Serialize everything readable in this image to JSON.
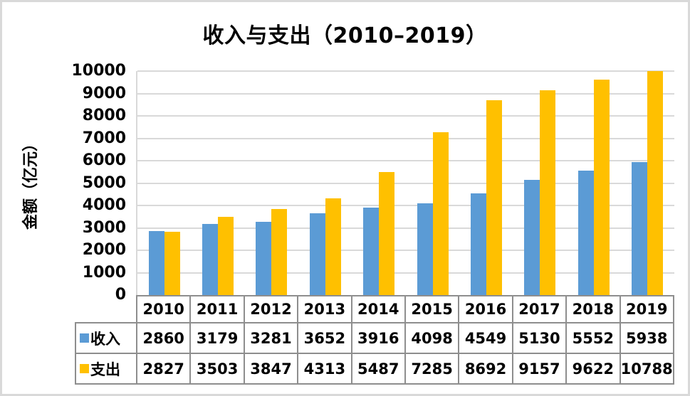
{
  "frame": {
    "background": "#FFFFFF",
    "border_color": "#D9D9D9"
  },
  "chart_data": {
    "type": "bar",
    "title": "收入与支出（2010–2019）",
    "ylabel": "金额（亿元）",
    "xlabel": "",
    "categories": [
      "2010",
      "2011",
      "2012",
      "2013",
      "2014",
      "2015",
      "2016",
      "2017",
      "2018",
      "2019"
    ],
    "series": [
      {
        "key": "income",
        "name": "收入",
        "color": "#5B9BD5",
        "values": [
          2860,
          3179,
          3281,
          3652,
          3916,
          4098,
          4549,
          5130,
          5552,
          5938
        ]
      },
      {
        "key": "expense",
        "name": "支出",
        "color": "#FFC000",
        "values": [
          2827,
          3503,
          3847,
          4313,
          5487,
          7285,
          8692,
          9157,
          9622,
          10788
        ]
      }
    ],
    "ylim": [
      0,
      10000
    ],
    "ytick_step": 1000,
    "ytick_labels": [
      "0",
      "1000",
      "2000",
      "3000",
      "4000",
      "5000",
      "6000",
      "7000",
      "8000",
      "9000",
      "10000"
    ],
    "grid": true,
    "gridline_color": "#D9D9D9",
    "axis_color": "#8E8E8E",
    "bars_clipped_at_ymax": true,
    "legend_position": "data-table-left",
    "data_table": true
  }
}
